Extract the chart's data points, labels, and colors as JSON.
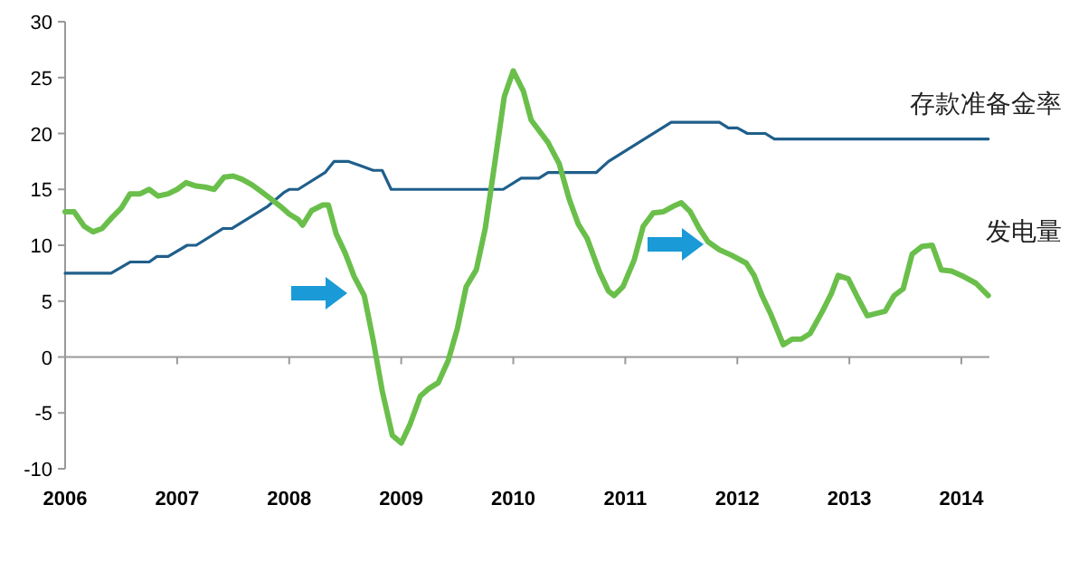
{
  "chart_data": {
    "type": "line",
    "xlim": [
      2006,
      2014.25
    ],
    "xticks": [
      2006,
      2007,
      2008,
      2009,
      2010,
      2011,
      2012,
      2013,
      2014
    ],
    "ylim": [
      -10,
      30
    ],
    "yticks": [
      -10,
      -5,
      0,
      5,
      10,
      15,
      20,
      25,
      30
    ],
    "legend": false,
    "marker": "none",
    "line_style": "solid",
    "series": [
      {
        "name": "存款准备金率",
        "color": "#1f5f8b",
        "x": [
          2006.0,
          2006.41,
          2006.58,
          2006.75,
          2006.82,
          2006.92,
          2007.09,
          2007.17,
          2007.41,
          2007.49,
          2007.81,
          2007.95,
          2008.0,
          2008.08,
          2008.32,
          2008.4,
          2008.53,
          2008.64,
          2008.75,
          2008.83,
          2008.91,
          2009.91,
          2010.07,
          2010.23,
          2010.31,
          2010.74,
          2010.85,
          2011.17,
          2011.41,
          2011.84,
          2011.92,
          2012.0,
          2012.09,
          2012.25,
          2012.33,
          2014.24
        ],
        "values": [
          7.5,
          7.5,
          8.5,
          8.5,
          9,
          9,
          10,
          10,
          11.5,
          11.5,
          13.5,
          14.7,
          15,
          15,
          16.5,
          17.5,
          17.5,
          17.1,
          16.7,
          16.7,
          15,
          15,
          16,
          16,
          16.5,
          16.5,
          17.5,
          19.5,
          21,
          21,
          20.5,
          20.5,
          20,
          20,
          19.5,
          19.5
        ]
      },
      {
        "name": "发电量",
        "color": "#6abf4b",
        "x": [
          2006.0,
          2006.08,
          2006.17,
          2006.25,
          2006.33,
          2006.42,
          2006.5,
          2006.58,
          2006.67,
          2006.75,
          2006.83,
          2006.92,
          2007.0,
          2007.08,
          2007.17,
          2007.25,
          2007.33,
          2007.42,
          2007.5,
          2007.58,
          2007.67,
          2007.75,
          2007.83,
          2007.92,
          2008.0,
          2008.08,
          2008.12,
          2008.2,
          2008.3,
          2008.35,
          2008.42,
          2008.5,
          2008.58,
          2008.67,
          2008.75,
          2008.83,
          2008.92,
          2009.0,
          2009.08,
          2009.17,
          2009.25,
          2009.33,
          2009.42,
          2009.5,
          2009.58,
          2009.67,
          2009.75,
          2009.83,
          2009.92,
          2010.0,
          2010.09,
          2010.16,
          2010.31,
          2010.41,
          2010.5,
          2010.58,
          2010.66,
          2010.77,
          2010.85,
          2010.9,
          2010.98,
          2011.08,
          2011.16,
          2011.25,
          2011.34,
          2011.43,
          2011.5,
          2011.58,
          2011.66,
          2011.74,
          2011.84,
          2011.95,
          2012.08,
          2012.15,
          2012.22,
          2012.3,
          2012.41,
          2012.49,
          2012.57,
          2012.65,
          2012.76,
          2012.84,
          2012.9,
          2012.99,
          2013.08,
          2013.16,
          2013.32,
          2013.4,
          2013.48,
          2013.56,
          2013.65,
          2013.74,
          2013.82,
          2013.91,
          2014.02,
          2014.13,
          2014.24
        ],
        "values": [
          13,
          13,
          11.7,
          11.2,
          11.5,
          12.5,
          13.3,
          14.6,
          14.6,
          15,
          14.4,
          14.6,
          15,
          15.6,
          15.3,
          15.2,
          15,
          16.1,
          16.2,
          15.9,
          15.4,
          14.8,
          14.2,
          13.5,
          12.8,
          12.3,
          11.8,
          13.1,
          13.6,
          13.6,
          11,
          9.3,
          7.2,
          5.5,
          1.5,
          -3,
          -7,
          -7.7,
          -6,
          -3.5,
          -2.8,
          -2.3,
          -0.3,
          2.5,
          6.3,
          7.8,
          11.5,
          17,
          23.3,
          25.6,
          23.8,
          21.2,
          19.2,
          17.3,
          14.1,
          11.9,
          10.6,
          7.6,
          5.9,
          5.5,
          6.3,
          8.7,
          11.7,
          12.9,
          13,
          13.5,
          13.8,
          13,
          11.5,
          10.3,
          9.6,
          9.1,
          8.4,
          7.3,
          5.5,
          3.8,
          1.1,
          1.6,
          1.6,
          2.1,
          4.1,
          5.7,
          7.3,
          7,
          5.2,
          3.7,
          4.1,
          5.5,
          6.1,
          9.2,
          9.9,
          10,
          7.8,
          7.7,
          7.2,
          6.6,
          5.5
        ]
      }
    ]
  }
}
